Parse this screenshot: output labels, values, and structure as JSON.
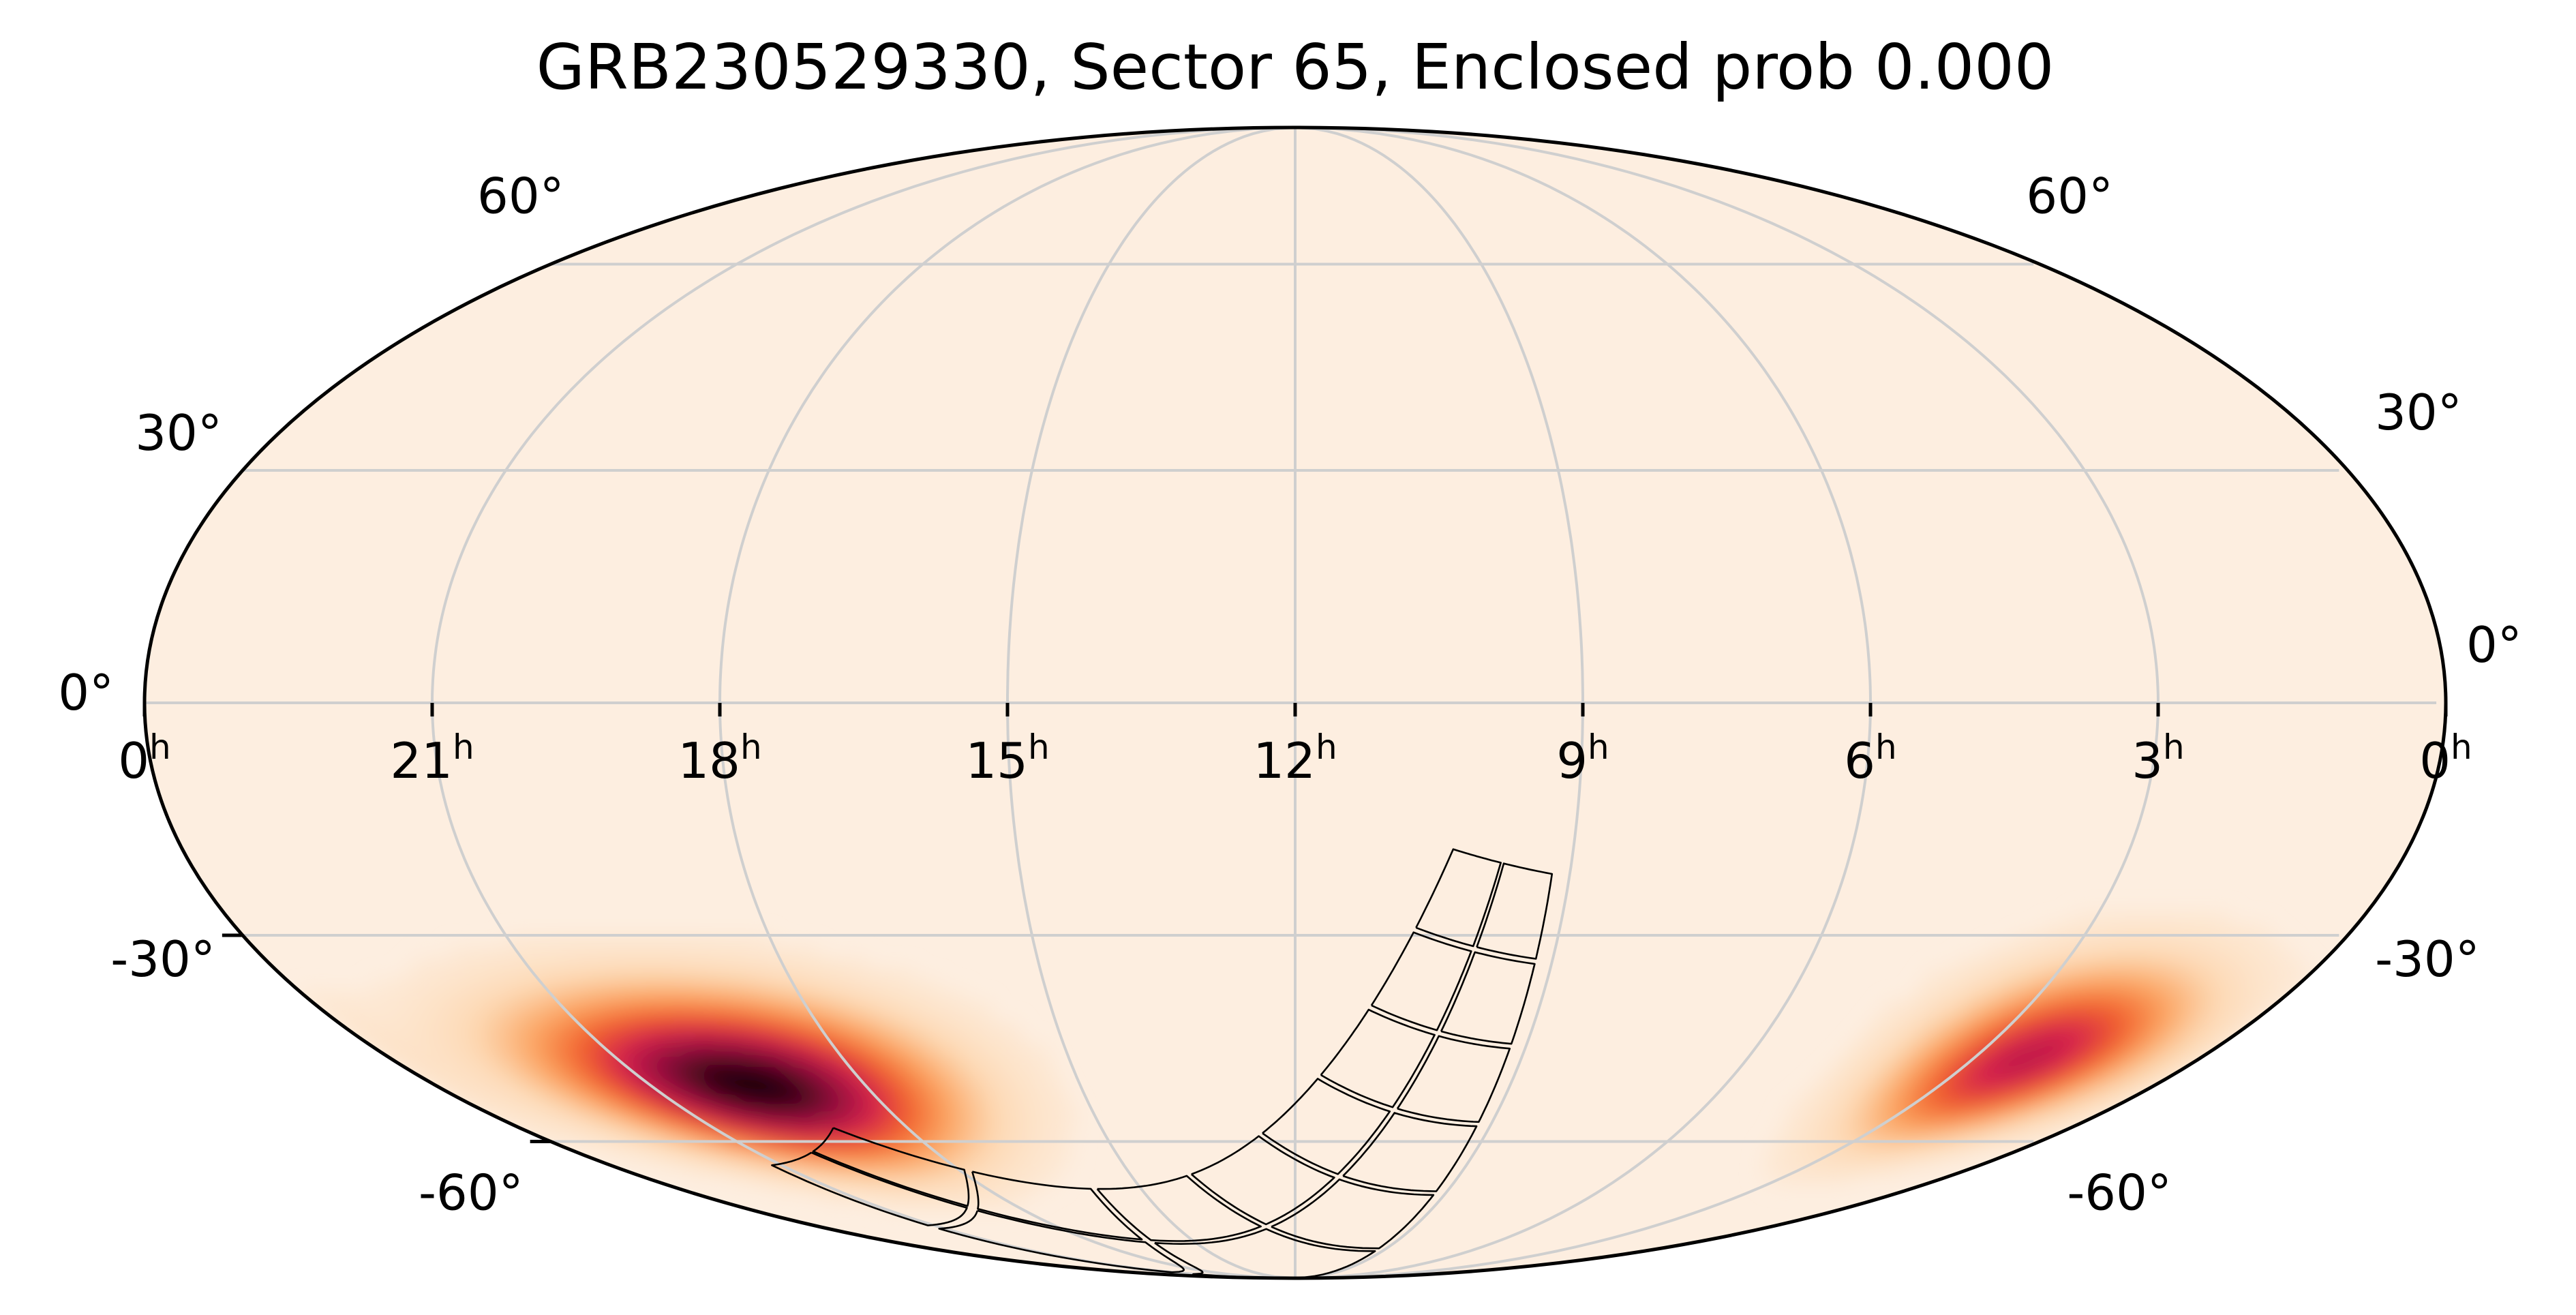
{
  "chart_data": {
    "type": "heatmap",
    "title": "GRB230529330, Sector 65, Enclosed prob 0.000",
    "projection": "mollweide",
    "ra_tick_labels": [
      {
        "label": "0",
        "unit": "h",
        "ra_hours": 24
      },
      {
        "label": "21",
        "unit": "h",
        "ra_hours": 21
      },
      {
        "label": "18",
        "unit": "h",
        "ra_hours": 18
      },
      {
        "label": "15",
        "unit": "h",
        "ra_hours": 15
      },
      {
        "label": "12",
        "unit": "h",
        "ra_hours": 12
      },
      {
        "label": "9",
        "unit": "h",
        "ra_hours": 9
      },
      {
        "label": "6",
        "unit": "h",
        "ra_hours": 6
      },
      {
        "label": "3",
        "unit": "h",
        "ra_hours": 3
      },
      {
        "label": "0",
        "unit": "h",
        "ra_hours": 0
      }
    ],
    "dec_tick_labels": [
      {
        "label": "60°",
        "dec_deg": 60
      },
      {
        "label": "30°",
        "dec_deg": 30
      },
      {
        "label": "0°",
        "dec_deg": 0
      },
      {
        "label": "-30°",
        "dec_deg": -30
      },
      {
        "label": "-60°",
        "dec_deg": -60
      }
    ],
    "ra_range_hours": [
      0,
      24
    ],
    "dec_range_deg": [
      -90,
      90
    ],
    "grid": true,
    "colormap": {
      "low": "#fdeee0",
      "stops": [
        "#fdeee0",
        "#fdd9b4",
        "#fba35f",
        "#f2622d",
        "#d41f4e",
        "#8c0f3a",
        "#1a0008"
      ]
    },
    "probability_lobes": [
      {
        "ra_hours": 19.6,
        "dec_deg": -51,
        "peak": 1.0,
        "sigma_ra_deg": 26,
        "sigma_dec_deg": 8.5
      },
      {
        "ra_hours": 2.3,
        "dec_deg": -47,
        "peak": 0.72,
        "sigma_ra_deg": 16,
        "sigma_dec_deg": 8.5
      }
    ],
    "sector_footprint": {
      "sector": 65,
      "center_ra_hours": 11.2,
      "center_dec_deg": -66,
      "camera_count": 4,
      "ccds_per_camera": 4
    },
    "enclosed_prob": 0.0
  }
}
